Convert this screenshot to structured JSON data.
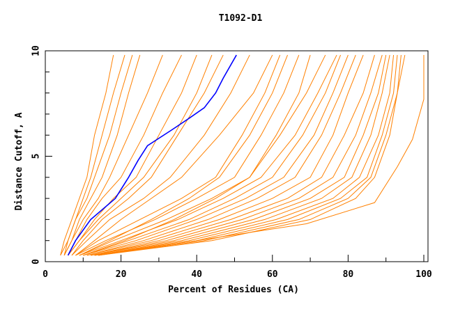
{
  "chart_data": {
    "type": "line",
    "title": "T1092-D1",
    "xlabel": "Percent of Residues (CA)",
    "ylabel": "Distance Cutoff, A",
    "xlim": [
      0,
      100
    ],
    "ylim": [
      0,
      10
    ],
    "xticks": [
      "0",
      "20",
      "40",
      "60",
      "80",
      "100"
    ],
    "yticks": [
      "0",
      "5",
      "10"
    ],
    "grid": false,
    "colors": {
      "others": "#ff8000",
      "highlight": "#0000ff"
    },
    "highlight": {
      "x": [
        6,
        8,
        12,
        18.5,
        22,
        24.5,
        27,
        33,
        38,
        42,
        45,
        47,
        50.5
      ],
      "y": [
        0.3,
        1,
        2,
        3,
        4,
        4.8,
        5.5,
        6.2,
        6.8,
        7.3,
        8,
        8.7,
        9.8
      ]
    },
    "series": [
      {
        "x": [
          4,
          5,
          7,
          9,
          11,
          13,
          16,
          18
        ],
        "y": [
          0.3,
          1,
          2,
          3,
          4,
          6,
          8,
          9.8
        ]
      },
      {
        "x": [
          4,
          6,
          8,
          10,
          12,
          15,
          18,
          21
        ],
        "y": [
          0.3,
          1,
          2,
          3,
          4,
          6,
          8,
          9.8
        ]
      },
      {
        "x": [
          5,
          6,
          8,
          11,
          13,
          17,
          20,
          23
        ],
        "y": [
          0.3,
          1,
          2,
          3,
          4,
          6,
          8,
          9.8
        ]
      },
      {
        "x": [
          5,
          7,
          9,
          12,
          15,
          19,
          22,
          25
        ],
        "y": [
          0.3,
          1,
          2,
          3,
          4,
          6,
          8,
          9.8
        ]
      },
      {
        "x": [
          5,
          7,
          10,
          14,
          17,
          22,
          27,
          31
        ],
        "y": [
          0.3,
          1,
          2,
          3,
          4,
          6,
          8,
          9.8
        ]
      },
      {
        "x": [
          6,
          8,
          11,
          15,
          20,
          26,
          31,
          36
        ],
        "y": [
          0.3,
          1,
          2,
          3,
          4,
          6,
          8,
          9.8
        ]
      },
      {
        "x": [
          6,
          9,
          13,
          18,
          24,
          30,
          36,
          40
        ],
        "y": [
          0.3,
          1,
          2,
          3,
          4,
          6,
          8,
          9.8
        ]
      },
      {
        "x": [
          7,
          10,
          15,
          22,
          28,
          35,
          42,
          47
        ],
        "y": [
          0.3,
          1,
          2,
          3,
          4,
          6,
          8,
          9.8
        ]
      },
      {
        "x": [
          7,
          11,
          17,
          26,
          33,
          42,
          49,
          54
        ],
        "y": [
          0.3,
          1,
          2,
          3,
          4,
          6,
          8,
          9.8
        ]
      },
      {
        "x": [
          8,
          14,
          25,
          36,
          45,
          52,
          58,
          62
        ],
        "y": [
          0.3,
          1,
          2,
          3,
          4,
          6,
          8,
          9.8
        ]
      },
      {
        "x": [
          8,
          16,
          29,
          40,
          50,
          57,
          63,
          67
        ],
        "y": [
          0.3,
          1,
          2,
          3,
          4,
          6,
          8,
          9.8
        ]
      },
      {
        "x": [
          9,
          18,
          32,
          44,
          54,
          62,
          69,
          74
        ],
        "y": [
          0.3,
          1,
          2,
          3,
          4,
          6,
          8,
          9.8
        ]
      },
      {
        "x": [
          9,
          20,
          35,
          47,
          57,
          66,
          72,
          77
        ],
        "y": [
          0.3,
          1,
          2,
          3,
          4,
          6,
          8,
          9.8
        ]
      },
      {
        "x": [
          10,
          22,
          38,
          50,
          60,
          68,
          74,
          78
        ],
        "y": [
          0.3,
          1,
          2,
          3,
          4,
          6,
          8,
          9.8
        ]
      },
      {
        "x": [
          10,
          24,
          40,
          53,
          63,
          71,
          76,
          80
        ],
        "y": [
          0.3,
          1,
          2,
          3,
          4,
          6,
          8,
          9.8
        ]
      },
      {
        "x": [
          11,
          26,
          43,
          56,
          66,
          73,
          78,
          82
        ],
        "y": [
          0.3,
          1,
          2,
          3,
          4,
          6,
          8,
          9.8
        ]
      },
      {
        "x": [
          11,
          28,
          46,
          60,
          70,
          76,
          80,
          84
        ],
        "y": [
          0.3,
          1,
          2,
          3,
          4,
          6,
          8,
          9.8
        ]
      },
      {
        "x": [
          12,
          30,
          49,
          64,
          73,
          79,
          84,
          87
        ],
        "y": [
          0.3,
          1,
          2,
          3,
          4,
          6,
          8,
          9.8
        ]
      },
      {
        "x": [
          12,
          32,
          52,
          67,
          76,
          82,
          86,
          89
        ],
        "y": [
          0.3,
          1,
          2,
          3,
          4,
          6,
          8,
          9.8
        ]
      },
      {
        "x": [
          12,
          34,
          55,
          70,
          79,
          84,
          88,
          90
        ],
        "y": [
          0.3,
          1,
          2,
          3,
          4,
          6,
          8,
          9.8
        ]
      },
      {
        "x": [
          13,
          36,
          58,
          73,
          81,
          86,
          89,
          91
        ],
        "y": [
          0.3,
          1,
          2,
          3,
          4,
          6,
          8,
          9.8
        ]
      },
      {
        "x": [
          13,
          38,
          61,
          76,
          83,
          88,
          91,
          92
        ],
        "y": [
          0.3,
          1,
          2,
          3,
          4,
          6,
          8,
          9.8
        ]
      },
      {
        "x": [
          13,
          40,
          64,
          78,
          85,
          89,
          92,
          93
        ],
        "y": [
          0.3,
          1,
          2,
          3,
          4,
          6,
          8,
          9.8
        ]
      },
      {
        "x": [
          14,
          42,
          67,
          80,
          86,
          90,
          93,
          94
        ],
        "y": [
          0.3,
          1,
          2,
          3,
          4,
          6,
          8,
          9.8
        ]
      },
      {
        "x": [
          14,
          44,
          70,
          82,
          87,
          91,
          93,
          95
        ],
        "y": [
          0.3,
          1,
          2,
          3,
          4,
          6,
          8,
          9.8
        ]
      },
      {
        "x": [
          9,
          17,
          28,
          38,
          46,
          54,
          60,
          64
        ],
        "y": [
          0.3,
          1,
          2,
          3,
          4,
          6,
          8,
          9.8
        ]
      },
      {
        "x": [
          10,
          21,
          34,
          45,
          54,
          61,
          67,
          70
        ],
        "y": [
          0.3,
          1,
          2,
          3,
          4,
          6,
          8,
          9.8
        ]
      },
      {
        "x": [
          8,
          13,
          20,
          28,
          36,
          46,
          55,
          60
        ],
        "y": [
          0.3,
          1,
          2,
          3,
          4,
          6,
          8,
          9.8
        ]
      },
      {
        "x": [
          6,
          9,
          14,
          20,
          26,
          34,
          40,
          44
        ],
        "y": [
          0.3,
          1,
          2,
          3,
          4,
          6,
          8,
          9.8
        ]
      },
      {
        "x": [
          14,
          40,
          69,
          87,
          93,
          97,
          100,
          100
        ],
        "y": [
          0.3,
          1,
          1.8,
          2.8,
          4.5,
          5.8,
          7.7,
          9.8
        ]
      }
    ]
  }
}
